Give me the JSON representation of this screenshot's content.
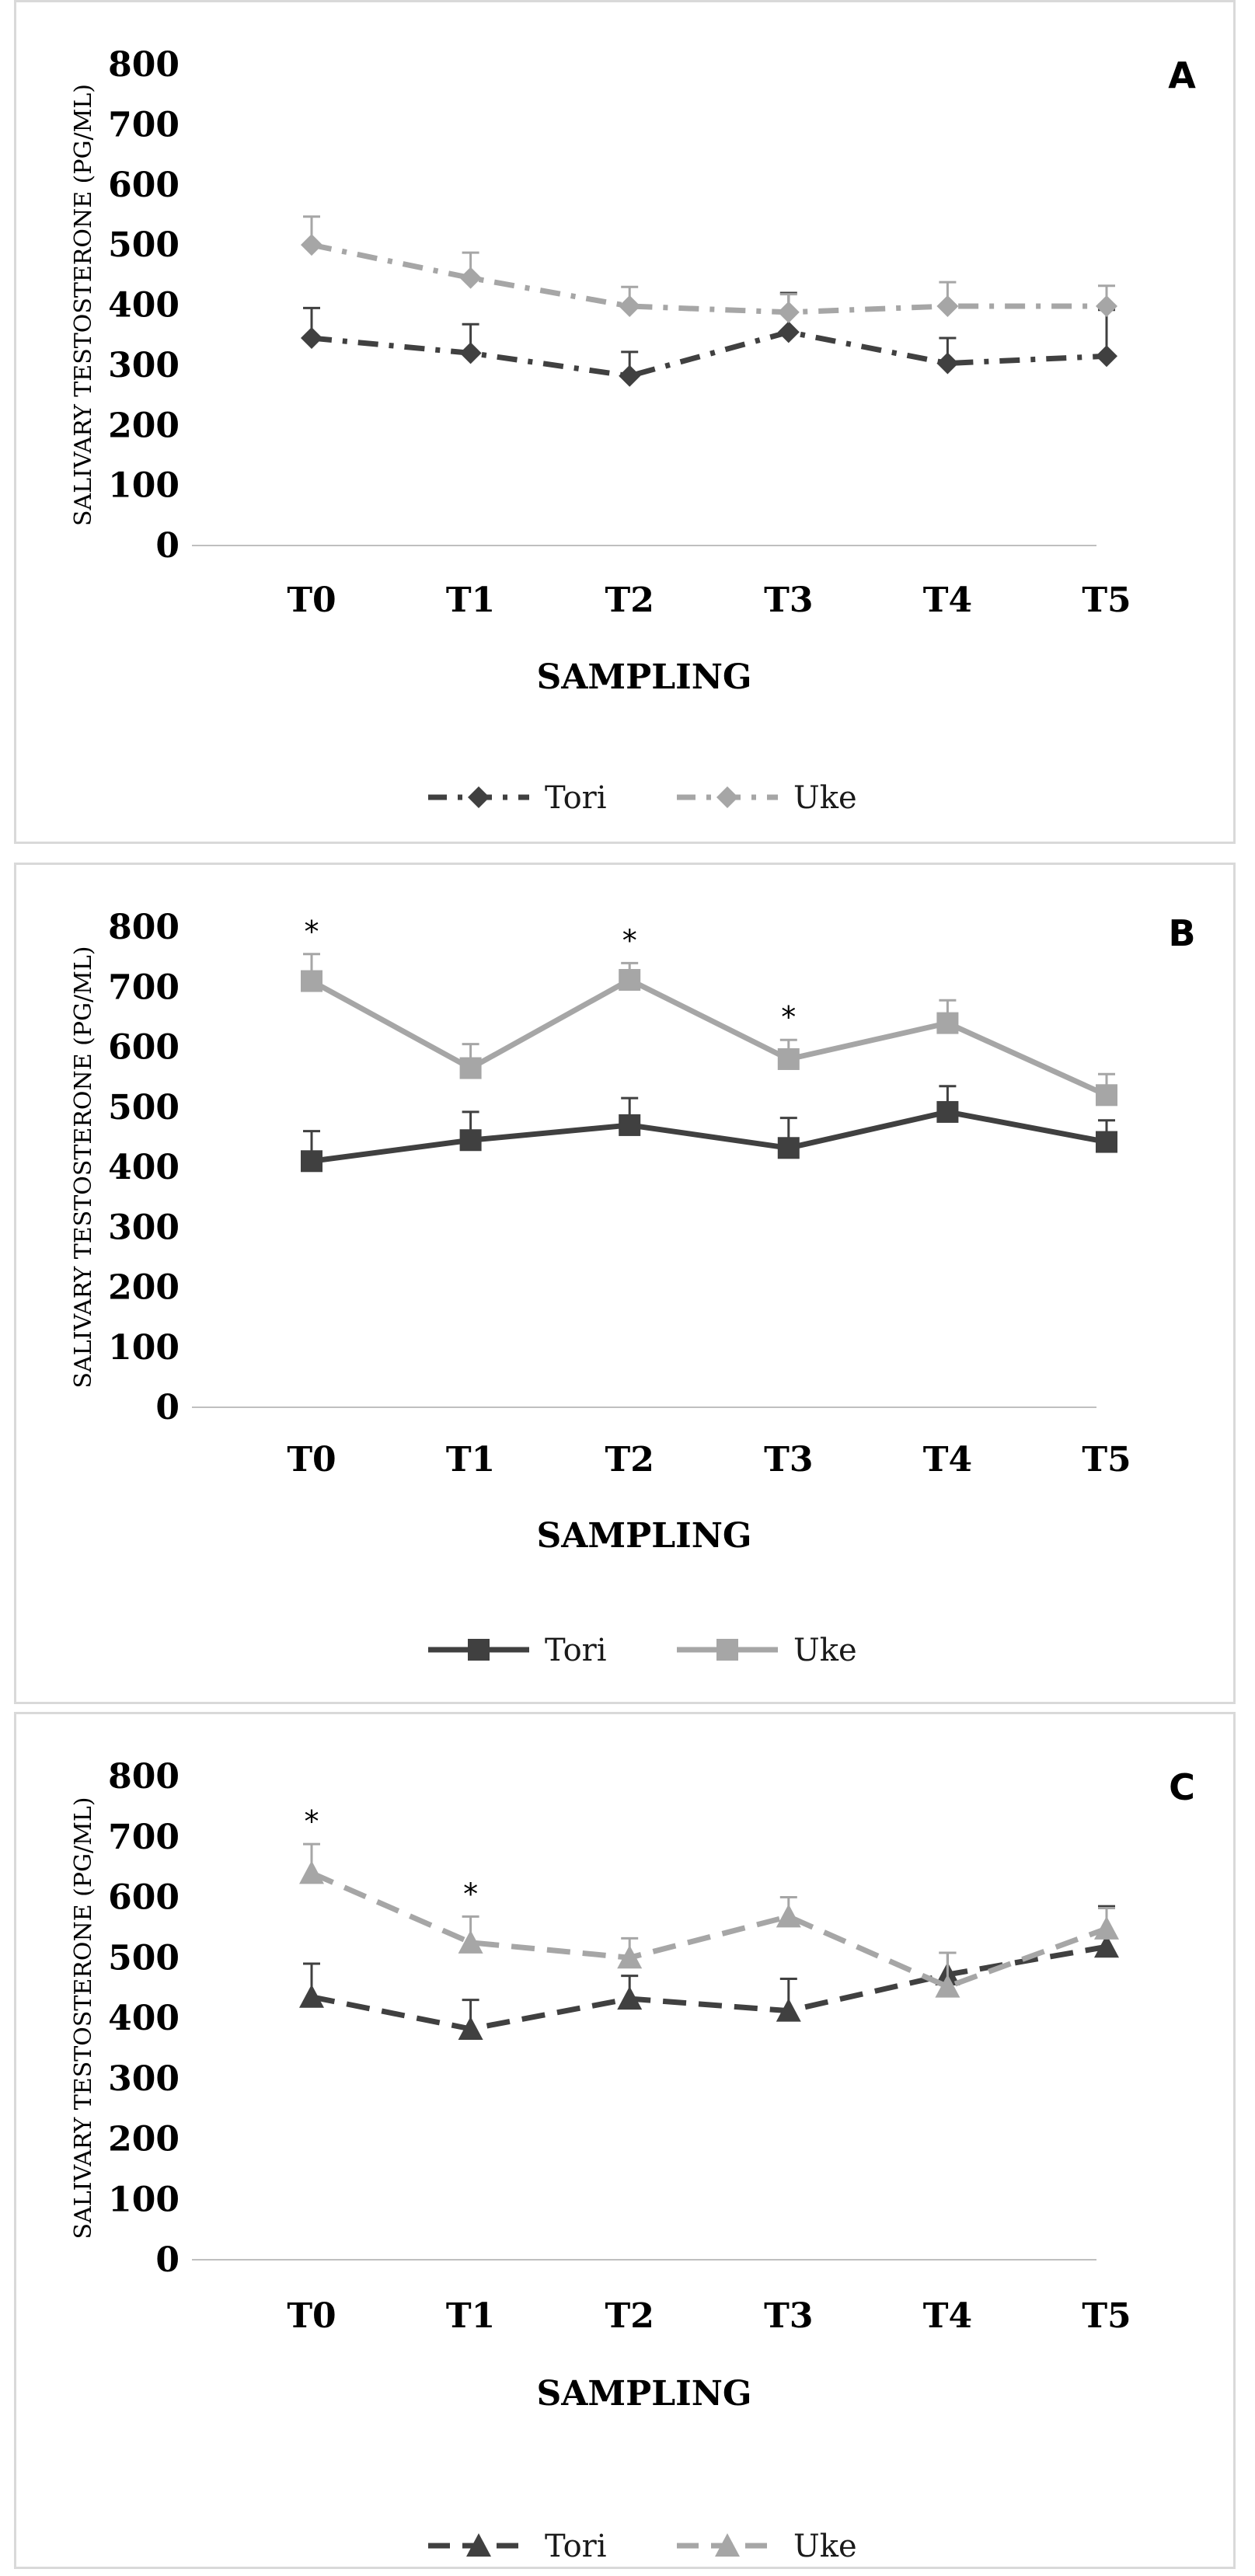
{
  "chart_data": [
    {
      "type": "line",
      "panel_label": "A",
      "ylabel": "SALIVARY TESTOSTERONE (PG/ML)",
      "xlabel": "SAMPLING",
      "categories": [
        "T0",
        "T1",
        "T2",
        "T3",
        "T4",
        "T5"
      ],
      "yticks": [
        "0",
        "100",
        "200",
        "300",
        "400",
        "500",
        "600",
        "700",
        "800"
      ],
      "ylim": [
        0,
        800
      ],
      "grid": false,
      "legend_position": "bottom",
      "marker": "diamond",
      "series": [
        {
          "name": "Tori",
          "color": "#404040",
          "line_style": "dash-dot",
          "values": [
            345,
            320,
            282,
            355,
            303,
            315
          ],
          "error_upper": [
            395,
            368,
            322,
            420,
            345,
            392
          ],
          "significance": [
            false,
            false,
            false,
            false,
            false,
            false
          ]
        },
        {
          "name": "Uke",
          "color": "#a6a6a6",
          "line_style": "dash-dot",
          "values": [
            500,
            445,
            398,
            388,
            398,
            398
          ],
          "error_upper": [
            547,
            487,
            430,
            418,
            438,
            432
          ],
          "significance": [
            false,
            false,
            false,
            false,
            false,
            false
          ]
        }
      ]
    },
    {
      "type": "line",
      "panel_label": "B",
      "ylabel": "SALIVARY TESTOSTERONE (PG/ML)",
      "xlabel": "SAMPLING",
      "categories": [
        "T0",
        "T1",
        "T2",
        "T3",
        "T4",
        "T5"
      ],
      "yticks": [
        "0",
        "100",
        "200",
        "300",
        "400",
        "500",
        "600",
        "700",
        "800"
      ],
      "ylim": [
        0,
        800
      ],
      "grid": false,
      "legend_position": "bottom",
      "marker": "square",
      "series": [
        {
          "name": "Tori",
          "color": "#404040",
          "line_style": "solid",
          "values": [
            410,
            445,
            470,
            432,
            492,
            442
          ],
          "error_upper": [
            460,
            492,
            515,
            482,
            535,
            478
          ],
          "significance": [
            false,
            false,
            false,
            false,
            false,
            false
          ]
        },
        {
          "name": "Uke",
          "color": "#a6a6a6",
          "line_style": "solid",
          "values": [
            710,
            565,
            712,
            580,
            640,
            520
          ],
          "error_upper": [
            755,
            605,
            740,
            612,
            678,
            555
          ],
          "significance": [
            true,
            false,
            true,
            true,
            false,
            false
          ]
        }
      ],
      "significance_marker": "*"
    },
    {
      "type": "line",
      "panel_label": "C",
      "ylabel": "SALIVARY TESTOSTERONE (PG/ML)",
      "xlabel": "SAMPLING",
      "categories": [
        "T0",
        "T1",
        "T2",
        "T3",
        "T4",
        "T5"
      ],
      "yticks": [
        "0",
        "100",
        "200",
        "300",
        "400",
        "500",
        "600",
        "700",
        "800"
      ],
      "ylim": [
        0,
        800
      ],
      "grid": false,
      "legend_position": "bottom",
      "marker": "triangle",
      "series": [
        {
          "name": "Tori",
          "color": "#404040",
          "line_style": "dashed",
          "values": [
            435,
            382,
            432,
            412,
            472,
            518
          ],
          "error_upper": [
            490,
            430,
            470,
            465,
            508,
            585
          ],
          "significance": [
            false,
            false,
            false,
            false,
            false,
            false
          ]
        },
        {
          "name": "Uke",
          "color": "#a6a6a6",
          "line_style": "dashed",
          "values": [
            640,
            525,
            500,
            568,
            452,
            548
          ],
          "error_upper": [
            688,
            568,
            532,
            600,
            508,
            582
          ],
          "significance": [
            true,
            true,
            false,
            false,
            false,
            false
          ]
        }
      ],
      "significance_marker": "*"
    }
  ]
}
